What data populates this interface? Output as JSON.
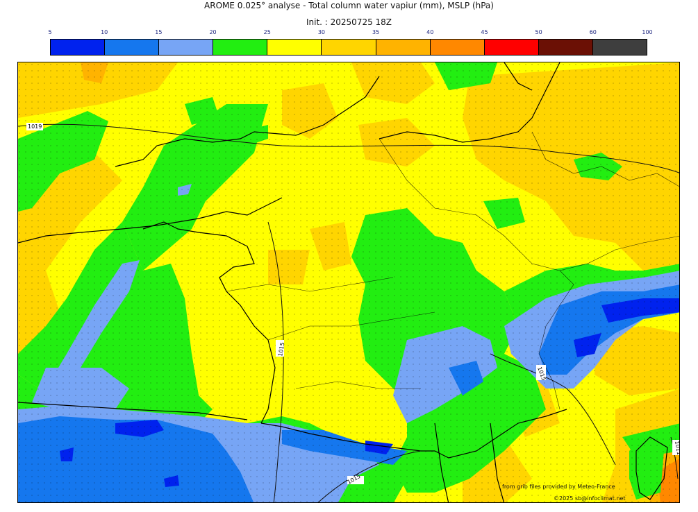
{
  "header": {
    "title": "AROME 0.025° analyse - Total column water vapiur (mm), MSLP (hPa)",
    "init": "Init. : 20250725 18Z"
  },
  "legend": {
    "ticks": [
      "5",
      "10",
      "15",
      "20",
      "25",
      "30",
      "35",
      "40",
      "45",
      "50",
      "60",
      "100"
    ],
    "colors": [
      "#0022ee",
      "#1577ee",
      "#77a5f5",
      "#22ee11",
      "#ffff00",
      "#ffd500",
      "#ffb300",
      "#ff8800",
      "#ff0000",
      "#6b1005",
      "#3e3e3e"
    ]
  },
  "map": {
    "isobars": [
      {
        "label": "1019"
      },
      {
        "label": "1015"
      },
      {
        "label": "1015"
      },
      {
        "label": "1015"
      },
      {
        "label": "1011"
      }
    ]
  },
  "footer": {
    "credit_source": "from grib files provided by Meteo-France",
    "credit_author": "©2025 sb@infoclimat.net"
  }
}
